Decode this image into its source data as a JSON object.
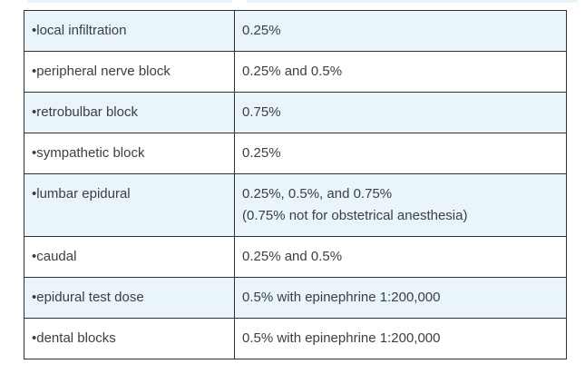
{
  "colors": {
    "background": "#ffffff",
    "row_highlight": "#e9f4fb",
    "border": "#333333",
    "text": "#3a4045"
  },
  "table": {
    "rows": [
      {
        "label": "•local infiltration",
        "value": "0.25%"
      },
      {
        "label": "•peripheral nerve block",
        "value": "0.25% and 0.5%"
      },
      {
        "label": "•retrobulbar block",
        "value": "0.75%"
      },
      {
        "label": "•sympathetic block",
        "value": "0.25%"
      },
      {
        "label": "•lumbar epidural",
        "value": "0.25%, 0.5%, and 0.75%",
        "note": "(0.75% not for obstetrical anesthesia)"
      },
      {
        "label": "•caudal",
        "value": "0.25% and 0.5%"
      },
      {
        "label": "•epidural test dose",
        "value": "0.5% with epinephrine 1:200,000"
      },
      {
        "label": "•dental blocks",
        "value": "0.5% with epinephrine 1:200,000"
      }
    ]
  }
}
